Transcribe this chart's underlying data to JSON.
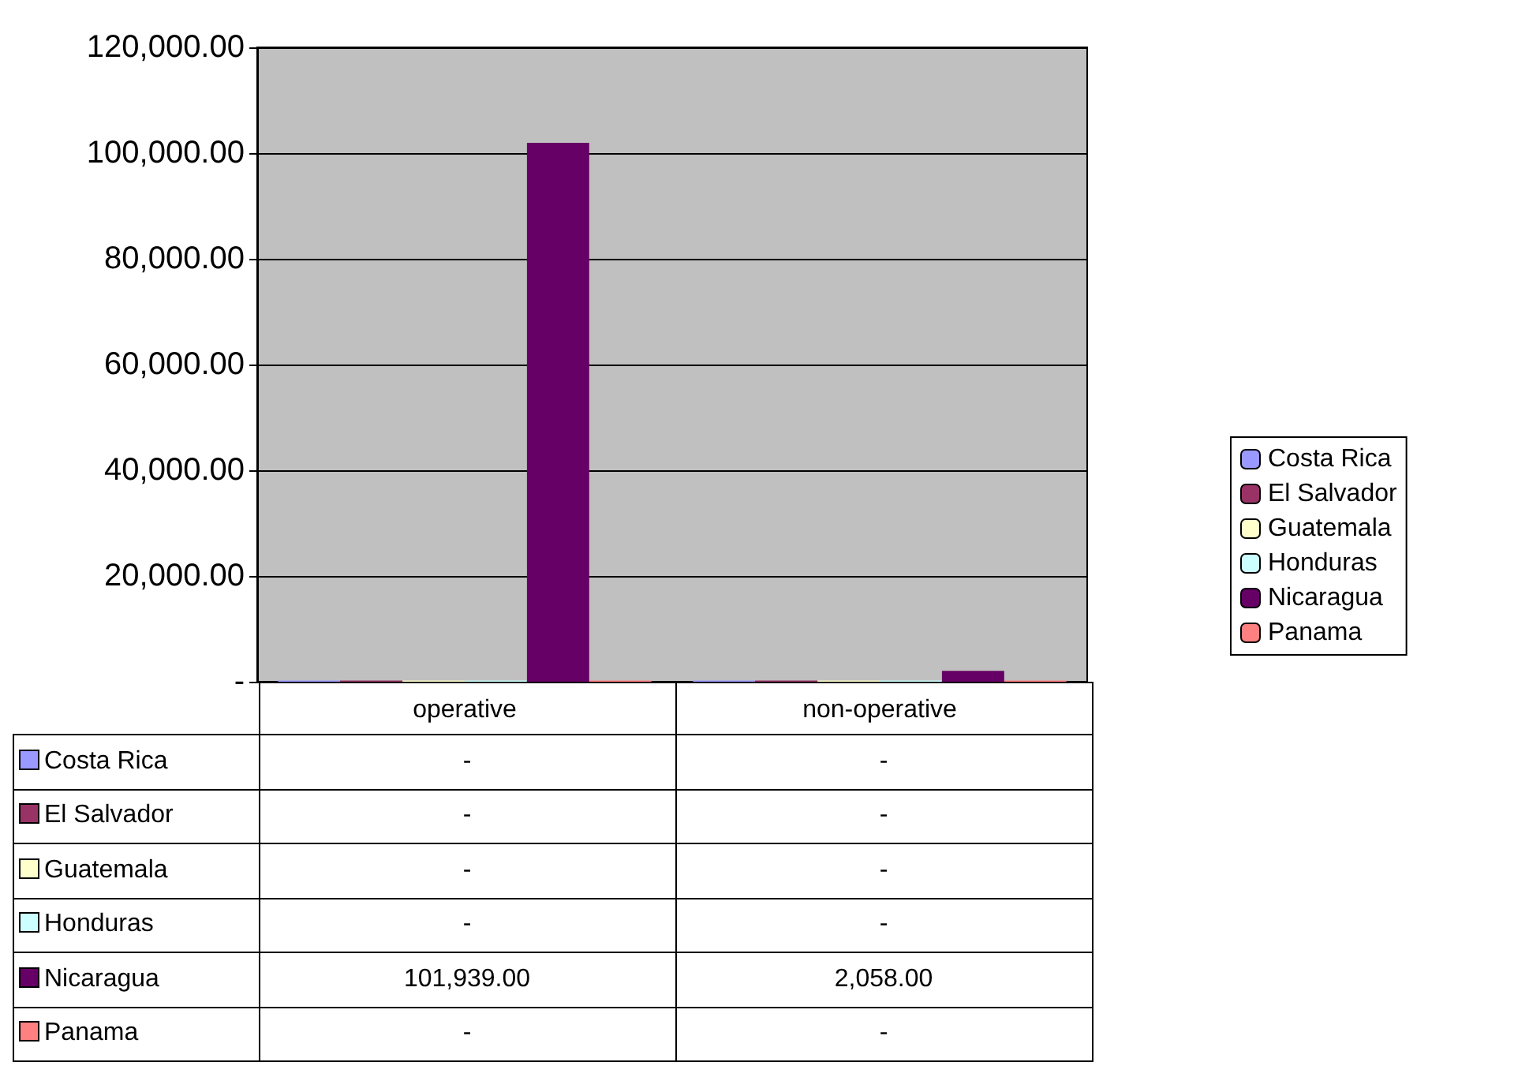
{
  "chart_data": {
    "type": "bar",
    "categories": [
      "operative",
      "non-operative"
    ],
    "series": [
      {
        "name": "Costa Rica",
        "color": "#9999ff",
        "values": [
          0,
          0
        ],
        "value_labels": [
          "-",
          "-"
        ]
      },
      {
        "name": "El Salvador",
        "color": "#993366",
        "values": [
          0,
          0
        ],
        "value_labels": [
          "-",
          "-"
        ]
      },
      {
        "name": "Guatemala",
        "color": "#ffffcc",
        "values": [
          0,
          0
        ],
        "value_labels": [
          "-",
          "-"
        ]
      },
      {
        "name": "Honduras",
        "color": "#ccffff",
        "values": [
          0,
          0
        ],
        "value_labels": [
          "-",
          "-"
        ]
      },
      {
        "name": "Nicaragua",
        "color": "#660066",
        "values": [
          101939,
          2058
        ],
        "value_labels": [
          "101,939.00",
          "2,058.00"
        ]
      },
      {
        "name": "Panama",
        "color": "#ff8080",
        "values": [
          0,
          0
        ],
        "value_labels": [
          "-",
          "-"
        ]
      }
    ],
    "ylim": [
      0,
      120000
    ],
    "yticks": [
      {
        "value": 0,
        "label": "-"
      },
      {
        "value": 20000,
        "label": "20,000.00"
      },
      {
        "value": 40000,
        "label": "40,000.00"
      },
      {
        "value": 60000,
        "label": "60,000.00"
      },
      {
        "value": 80000,
        "label": "80,000.00"
      },
      {
        "value": 100000,
        "label": "100,000.00"
      },
      {
        "value": 120000,
        "label": "120,000.00"
      }
    ],
    "grid": "y",
    "legend": "right"
  }
}
